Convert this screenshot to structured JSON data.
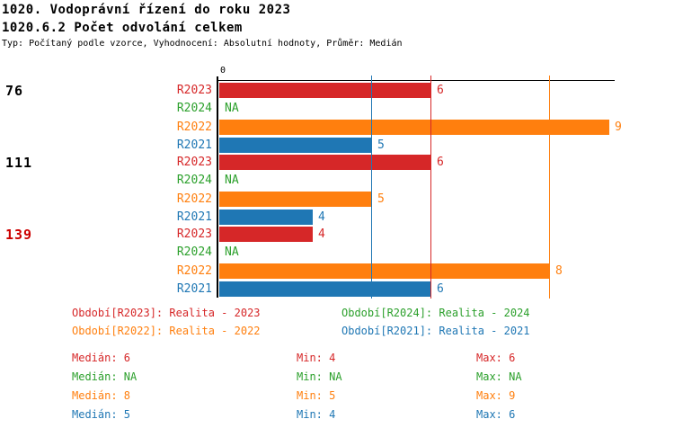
{
  "header": {
    "title": "1020. Vodoprávní řízení do roku 2023",
    "subtitle": "1020.6.2 Počet odvolání celkem",
    "meta": "Typ: Počítaný podle vzorce, Vyhodnocení: Absolutní hodnoty, Průměr: Medián"
  },
  "chart_data": {
    "type": "bar",
    "orientation": "horizontal",
    "x_axis_zero_label": "0",
    "series_colors": {
      "R2023": "#d62728",
      "R2024": "#2ca02c",
      "R2022": "#ff7f0e",
      "R2021": "#1f77b4"
    },
    "groups": [
      {
        "label": "76",
        "label_color": "#000000",
        "bars": [
          {
            "series": "R2023",
            "value": 6
          },
          {
            "series": "R2024",
            "value": "NA"
          },
          {
            "series": "R2022",
            "value": 9
          },
          {
            "series": "R2021",
            "value": 5
          }
        ]
      },
      {
        "label": "111",
        "label_color": "#000000",
        "bars": [
          {
            "series": "R2023",
            "value": 6
          },
          {
            "series": "R2024",
            "value": "NA"
          },
          {
            "series": "R2022",
            "value": 5
          },
          {
            "series": "R2021",
            "value": 4
          }
        ]
      },
      {
        "label": "139",
        "label_color": "#cc0000",
        "bars": [
          {
            "series": "R2023",
            "value": 4
          },
          {
            "series": "R2024",
            "value": "NA"
          },
          {
            "series": "R2022",
            "value": 8
          },
          {
            "series": "R2021",
            "value": 6
          }
        ]
      }
    ],
    "median_lines": [
      {
        "series": "R2021",
        "value": 5
      },
      {
        "series": "R2023",
        "value": 6
      },
      {
        "series": "R2022",
        "value": 8
      }
    ],
    "series_stats": [
      {
        "name": "R2023",
        "median": 6,
        "min": 4,
        "max": 6
      },
      {
        "name": "R2024",
        "median": "NA",
        "min": "NA",
        "max": "NA"
      },
      {
        "name": "R2022",
        "median": 8,
        "min": 5,
        "max": 9
      },
      {
        "name": "R2021",
        "median": 5,
        "min": 4,
        "max": 6
      }
    ]
  },
  "legend": {
    "items": [
      {
        "text": "Období[R2023]: Realita - 2023",
        "color": "#d62728"
      },
      {
        "text": "Období[R2024]: Realita - 2024",
        "color": "#2ca02c"
      },
      {
        "text": "Období[R2022]: Realita - 2022",
        "color": "#ff7f0e"
      },
      {
        "text": "Období[R2021]: Realita - 2021",
        "color": "#1f77b4"
      }
    ]
  },
  "stats": {
    "rows": [
      {
        "median": "Medián: 6",
        "min": "Min: 4",
        "max": "Max: 6",
        "color": "#d62728"
      },
      {
        "median": "Medián: NA",
        "min": "Min: NA",
        "max": "Max: NA",
        "color": "#2ca02c"
      },
      {
        "median": "Medián: 8",
        "min": "Min: 5",
        "max": "Max: 9",
        "color": "#ff7f0e"
      },
      {
        "median": "Medián: 5",
        "min": "Min: 4",
        "max": "Max: 6",
        "color": "#1f77b4"
      }
    ]
  }
}
